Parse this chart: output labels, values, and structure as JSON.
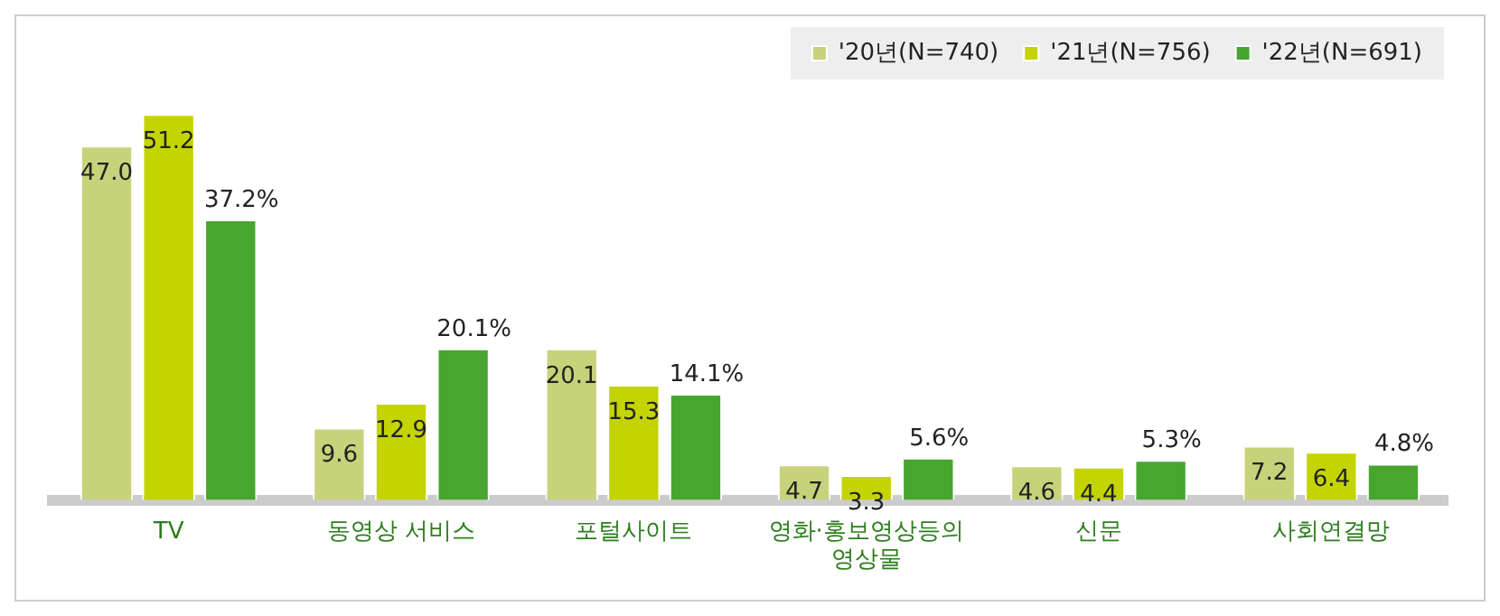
{
  "chart_data": {
    "type": "bar",
    "categories": [
      "TV",
      "동영상 서비스",
      "포털사이트",
      "영화·홍보영상등의 영상물",
      "신문",
      "사회연결망"
    ],
    "series": [
      {
        "name": "'20년(N=740)",
        "color": "#c8d27a",
        "values": [
          47.0,
          9.6,
          20.1,
          4.7,
          4.6,
          7.2
        ],
        "value_labels": [
          "47.0",
          "9.6",
          "20.1",
          "4.7",
          "4.6",
          "7.2"
        ]
      },
      {
        "name": "'21년(N=756)",
        "color": "#c3d400",
        "values": [
          51.2,
          12.9,
          15.3,
          3.3,
          4.4,
          6.4
        ],
        "value_labels": [
          "51.2",
          "12.9",
          "15.3",
          "3.3",
          "4.4",
          "6.4"
        ]
      },
      {
        "name": "'22년(N=691)",
        "color": "#46a62e",
        "values": [
          37.2,
          20.1,
          14.1,
          5.6,
          5.3,
          4.8
        ],
        "value_labels": [
          "37.2%",
          "20.1%",
          "14.1%",
          "5.6%",
          "5.3%",
          "4.8%"
        ]
      }
    ],
    "legend": "top right",
    "grid": false
  }
}
